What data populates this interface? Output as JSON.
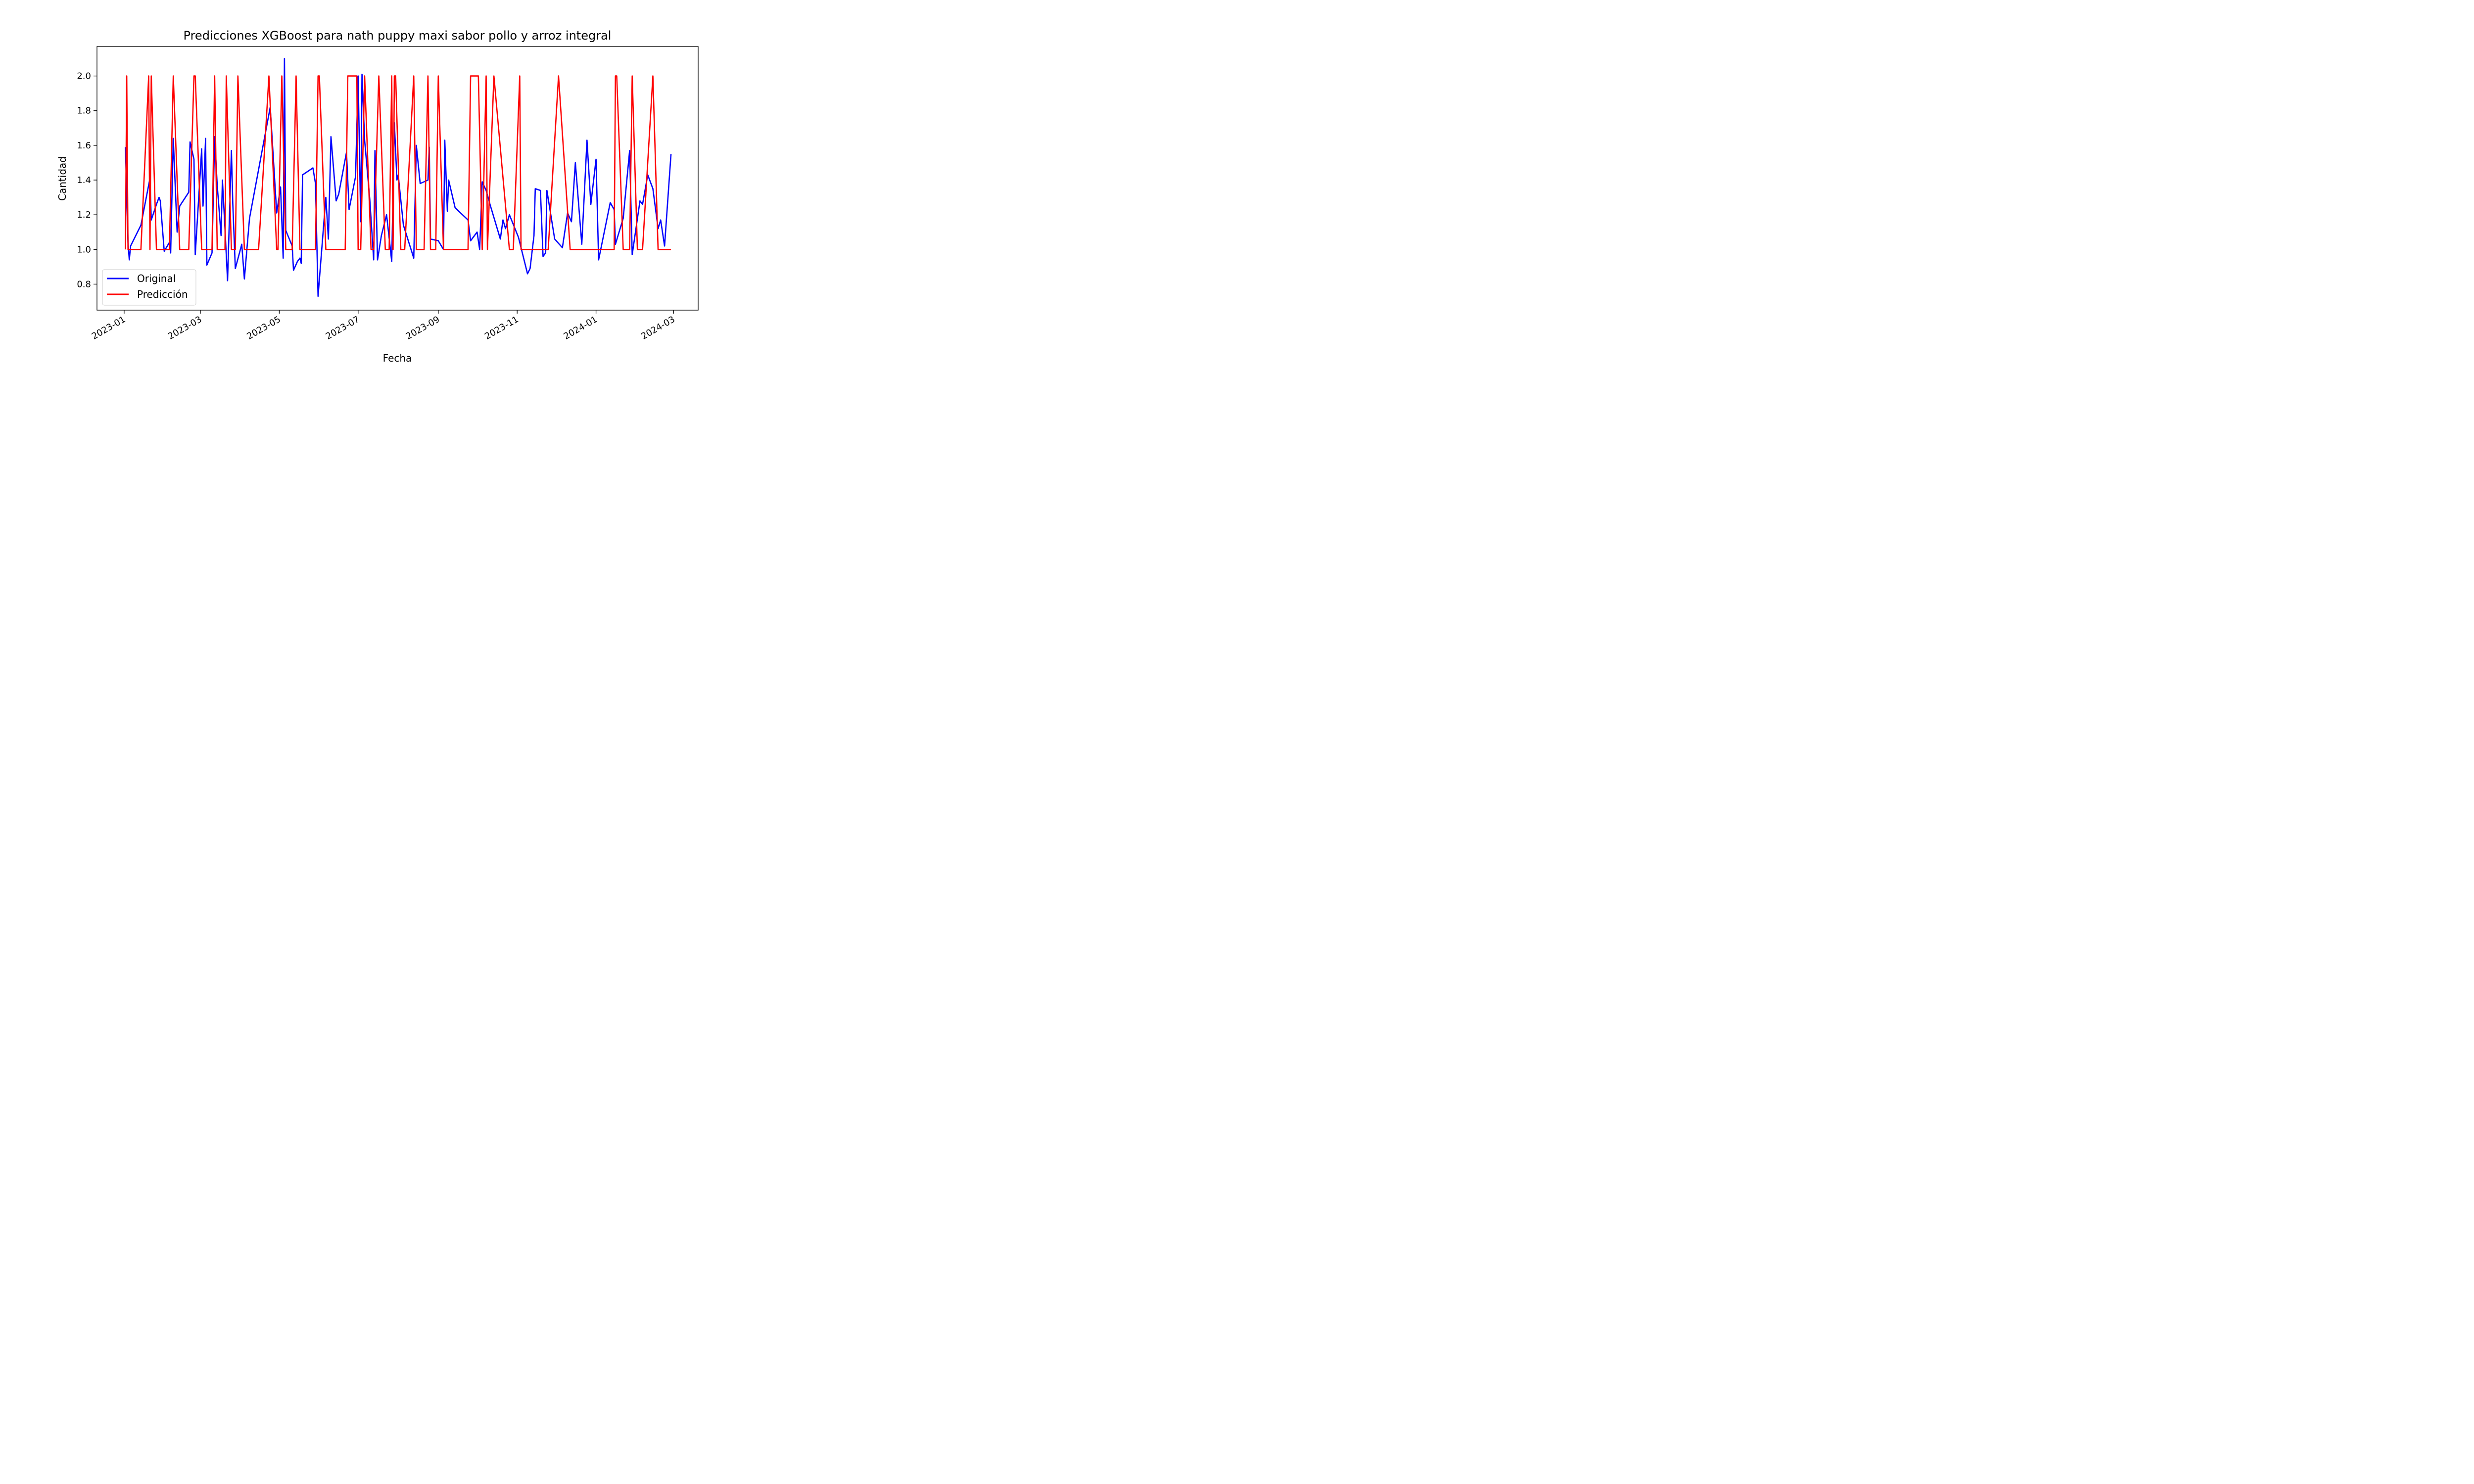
{
  "chart_data": {
    "type": "line",
    "title": "Predicciones XGBoost para nath puppy maxi sabor pollo y arroz integral",
    "xlabel": "Fecha",
    "ylabel": "Cantidad",
    "xlim": [
      "2022-12-11",
      "2024-03-20"
    ],
    "ylim": [
      0.65,
      2.17
    ],
    "x_ticks": [
      "2023-01-01",
      "2023-03-01",
      "2023-05-01",
      "2023-07-01",
      "2023-09-01",
      "2023-11-01",
      "2024-01-01",
      "2024-03-01"
    ],
    "x_tick_labels": [
      "2023-01",
      "2023-03",
      "2023-05",
      "2023-07",
      "2023-09",
      "2023-11",
      "2024-01",
      "2024-03"
    ],
    "y_ticks": [
      0.8,
      1.0,
      1.2,
      1.4,
      1.6,
      1.8,
      2.0
    ],
    "y_tick_labels": [
      "0.8",
      "1.0",
      "1.2",
      "1.4",
      "1.6",
      "1.8",
      "2.0"
    ],
    "grid": false,
    "legend_position": "lower-left",
    "series": [
      {
        "name": "Original",
        "color": "#0000ff",
        "points": [
          [
            "2023-01-02",
            1.59
          ],
          [
            "2023-01-04",
            1.04
          ],
          [
            "2023-01-05",
            0.94
          ],
          [
            "2023-01-06",
            1.02
          ],
          [
            "2023-01-14",
            1.14
          ],
          [
            "2023-01-21",
            1.41
          ],
          [
            "2023-01-22",
            1.17
          ],
          [
            "2023-01-26",
            1.26
          ],
          [
            "2023-01-28",
            1.3
          ],
          [
            "2023-01-29",
            1.28
          ],
          [
            "2023-02-01",
            0.99
          ],
          [
            "2023-02-05",
            1.04
          ],
          [
            "2023-02-06",
            0.98
          ],
          [
            "2023-02-08",
            1.64
          ],
          [
            "2023-02-11",
            1.1
          ],
          [
            "2023-02-13",
            1.25
          ],
          [
            "2023-02-20",
            1.33
          ],
          [
            "2023-02-21",
            1.62
          ],
          [
            "2023-02-24",
            1.52
          ],
          [
            "2023-02-25",
            0.97
          ],
          [
            "2023-03-02",
            1.58
          ],
          [
            "2023-03-03",
            1.25
          ],
          [
            "2023-03-05",
            1.64
          ],
          [
            "2023-03-06",
            0.91
          ],
          [
            "2023-03-10",
            0.98
          ],
          [
            "2023-03-12",
            1.65
          ],
          [
            "2023-03-14",
            1.37
          ],
          [
            "2023-03-17",
            1.08
          ],
          [
            "2023-03-18",
            1.4
          ],
          [
            "2023-03-20",
            1.12
          ],
          [
            "2023-03-22",
            0.82
          ],
          [
            "2023-03-25",
            1.57
          ],
          [
            "2023-03-26",
            1.27
          ],
          [
            "2023-03-28",
            0.89
          ],
          [
            "2023-04-02",
            1.03
          ],
          [
            "2023-04-04",
            0.83
          ],
          [
            "2023-04-08",
            1.18
          ],
          [
            "2023-04-24",
            1.82
          ],
          [
            "2023-04-29",
            1.21
          ],
          [
            "2023-05-02",
            1.36
          ],
          [
            "2023-05-04",
            0.95
          ],
          [
            "2023-05-05",
            2.1
          ],
          [
            "2023-05-06",
            1.11
          ],
          [
            "2023-05-11",
            1.02
          ],
          [
            "2023-05-12",
            0.88
          ],
          [
            "2023-05-15",
            0.93
          ],
          [
            "2023-05-17",
            0.95
          ],
          [
            "2023-05-18",
            0.92
          ],
          [
            "2023-05-19",
            1.43
          ],
          [
            "2023-05-27",
            1.47
          ],
          [
            "2023-05-29",
            1.38
          ],
          [
            "2023-05-31",
            0.73
          ],
          [
            "2023-06-06",
            1.3
          ],
          [
            "2023-06-08",
            1.06
          ],
          [
            "2023-06-10",
            1.65
          ],
          [
            "2023-06-14",
            1.28
          ],
          [
            "2023-06-16",
            1.32
          ],
          [
            "2023-06-22",
            1.56
          ],
          [
            "2023-06-24",
            1.23
          ],
          [
            "2023-06-29",
            1.42
          ],
          [
            "2023-07-01",
            2.0
          ],
          [
            "2023-07-03",
            1.16
          ],
          [
            "2023-07-04",
            2.01
          ],
          [
            "2023-07-06",
            1.63
          ],
          [
            "2023-07-10",
            1.29
          ],
          [
            "2023-07-13",
            0.94
          ],
          [
            "2023-07-14",
            1.57
          ],
          [
            "2023-07-16",
            0.94
          ],
          [
            "2023-07-19",
            1.08
          ],
          [
            "2023-07-23",
            1.2
          ],
          [
            "2023-07-27",
            0.93
          ],
          [
            "2023-07-29",
            1.73
          ],
          [
            "2023-07-31",
            1.4
          ],
          [
            "2023-08-01",
            1.43
          ],
          [
            "2023-08-05",
            1.14
          ],
          [
            "2023-08-13",
            0.95
          ],
          [
            "2023-08-15",
            1.6
          ],
          [
            "2023-08-18",
            1.38
          ],
          [
            "2023-08-24",
            1.4
          ],
          [
            "2023-08-25",
            1.59
          ],
          [
            "2023-08-26",
            1.06
          ],
          [
            "2023-09-01",
            1.05
          ],
          [
            "2023-09-05",
            1.0
          ],
          [
            "2023-09-06",
            1.63
          ],
          [
            "2023-09-08",
            1.22
          ],
          [
            "2023-09-09",
            1.4
          ],
          [
            "2023-09-14",
            1.24
          ],
          [
            "2023-09-24",
            1.17
          ],
          [
            "2023-09-26",
            1.05
          ],
          [
            "2023-10-01",
            1.1
          ],
          [
            "2023-10-03",
            1.0
          ],
          [
            "2023-10-05",
            1.39
          ],
          [
            "2023-10-08",
            1.34
          ],
          [
            "2023-10-11",
            1.26
          ],
          [
            "2023-10-19",
            1.06
          ],
          [
            "2023-10-21",
            1.17
          ],
          [
            "2023-10-23",
            1.12
          ],
          [
            "2023-10-26",
            1.2
          ],
          [
            "2023-11-02",
            1.07
          ],
          [
            "2023-11-09",
            0.86
          ],
          [
            "2023-11-11",
            0.89
          ],
          [
            "2023-11-14",
            1.08
          ],
          [
            "2023-11-15",
            1.35
          ],
          [
            "2023-11-19",
            1.34
          ],
          [
            "2023-11-21",
            0.96
          ],
          [
            "2023-11-23",
            0.98
          ],
          [
            "2023-11-24",
            1.34
          ],
          [
            "2023-11-30",
            1.06
          ],
          [
            "2023-12-06",
            1.01
          ],
          [
            "2023-12-10",
            1.21
          ],
          [
            "2023-12-13",
            1.16
          ],
          [
            "2023-12-16",
            1.5
          ],
          [
            "2023-12-21",
            1.03
          ],
          [
            "2023-12-23",
            1.33
          ],
          [
            "2023-12-25",
            1.63
          ],
          [
            "2023-12-28",
            1.26
          ],
          [
            "2024-01-01",
            1.52
          ],
          [
            "2024-01-03",
            0.94
          ],
          [
            "2024-01-12",
            1.27
          ],
          [
            "2024-01-15",
            1.23
          ],
          [
            "2024-01-16",
            1.03
          ],
          [
            "2024-01-22",
            1.18
          ],
          [
            "2024-01-27",
            1.57
          ],
          [
            "2024-01-29",
            0.97
          ],
          [
            "2024-02-04",
            1.28
          ],
          [
            "2024-02-06",
            1.26
          ],
          [
            "2024-02-10",
            1.43
          ],
          [
            "2024-02-14",
            1.35
          ],
          [
            "2024-02-18",
            1.12
          ],
          [
            "2024-02-20",
            1.17
          ],
          [
            "2024-02-23",
            1.02
          ],
          [
            "2024-02-28",
            1.55
          ]
        ]
      },
      {
        "name": "Predicción",
        "color": "#ff0000",
        "points": [
          [
            "2023-01-02",
            1.0
          ],
          [
            "2023-01-03",
            2.0
          ],
          [
            "2023-01-04",
            1.0
          ],
          [
            "2023-01-14",
            1.0
          ],
          [
            "2023-01-20",
            2.0
          ],
          [
            "2023-01-21",
            1.0
          ],
          [
            "2023-01-22",
            2.0
          ],
          [
            "2023-01-26",
            1.0
          ],
          [
            "2023-02-05",
            1.0
          ],
          [
            "2023-02-08",
            2.0
          ],
          [
            "2023-02-13",
            1.0
          ],
          [
            "2023-02-20",
            1.0
          ],
          [
            "2023-02-24",
            2.0
          ],
          [
            "2023-02-25",
            2.0
          ],
          [
            "2023-03-02",
            1.0
          ],
          [
            "2023-03-10",
            1.0
          ],
          [
            "2023-03-12",
            2.0
          ],
          [
            "2023-03-14",
            1.0
          ],
          [
            "2023-03-20",
            1.0
          ],
          [
            "2023-03-21",
            2.0
          ],
          [
            "2023-03-25",
            1.0
          ],
          [
            "2023-03-28",
            1.0
          ],
          [
            "2023-03-30",
            2.0
          ],
          [
            "2023-04-04",
            1.0
          ],
          [
            "2023-04-15",
            1.0
          ],
          [
            "2023-04-23",
            2.0
          ],
          [
            "2023-04-29",
            1.0
          ],
          [
            "2023-04-30",
            1.0
          ],
          [
            "2023-05-03",
            2.0
          ],
          [
            "2023-05-06",
            1.0
          ],
          [
            "2023-05-11",
            1.0
          ],
          [
            "2023-05-14",
            2.0
          ],
          [
            "2023-05-17",
            1.0
          ],
          [
            "2023-05-29",
            1.0
          ],
          [
            "2023-05-31",
            2.0
          ],
          [
            "2023-06-01",
            2.0
          ],
          [
            "2023-06-06",
            1.0
          ],
          [
            "2023-06-21",
            1.0
          ],
          [
            "2023-06-23",
            2.0
          ],
          [
            "2023-06-30",
            2.0
          ],
          [
            "2023-07-01",
            1.0
          ],
          [
            "2023-07-03",
            1.0
          ],
          [
            "2023-07-06",
            2.0
          ],
          [
            "2023-07-11",
            1.0
          ],
          [
            "2023-07-13",
            1.0
          ],
          [
            "2023-07-17",
            2.0
          ],
          [
            "2023-07-22",
            1.0
          ],
          [
            "2023-07-25",
            1.0
          ],
          [
            "2023-07-27",
            2.0
          ],
          [
            "2023-07-28",
            1.0
          ],
          [
            "2023-07-29",
            2.0
          ],
          [
            "2023-07-30",
            2.0
          ],
          [
            "2023-08-03",
            1.0
          ],
          [
            "2023-08-06",
            1.0
          ],
          [
            "2023-08-13",
            2.0
          ],
          [
            "2023-08-15",
            1.0
          ],
          [
            "2023-08-21",
            1.0
          ],
          [
            "2023-08-24",
            2.0
          ],
          [
            "2023-08-26",
            1.0
          ],
          [
            "2023-08-30",
            1.0
          ],
          [
            "2023-09-01",
            2.0
          ],
          [
            "2023-09-05",
            1.0
          ],
          [
            "2023-09-24",
            1.0
          ],
          [
            "2023-09-26",
            2.0
          ],
          [
            "2023-10-02",
            2.0
          ],
          [
            "2023-10-05",
            1.0
          ],
          [
            "2023-10-08",
            2.0
          ],
          [
            "2023-10-09",
            1.0
          ],
          [
            "2023-10-14",
            2.0
          ],
          [
            "2023-10-26",
            1.0
          ],
          [
            "2023-10-29",
            1.0
          ],
          [
            "2023-11-03",
            2.0
          ],
          [
            "2023-11-04",
            1.0
          ],
          [
            "2023-11-25",
            1.0
          ],
          [
            "2023-12-03",
            2.0
          ],
          [
            "2023-12-12",
            1.0
          ],
          [
            "2024-01-15",
            1.0
          ],
          [
            "2024-01-16",
            2.0
          ],
          [
            "2024-01-17",
            2.0
          ],
          [
            "2024-01-22",
            1.0
          ],
          [
            "2024-01-27",
            1.0
          ],
          [
            "2024-01-29",
            2.0
          ],
          [
            "2024-02-02",
            1.0
          ],
          [
            "2024-02-06",
            1.0
          ],
          [
            "2024-02-14",
            2.0
          ],
          [
            "2024-02-18",
            1.0
          ],
          [
            "2024-02-28",
            1.0
          ]
        ]
      }
    ]
  }
}
